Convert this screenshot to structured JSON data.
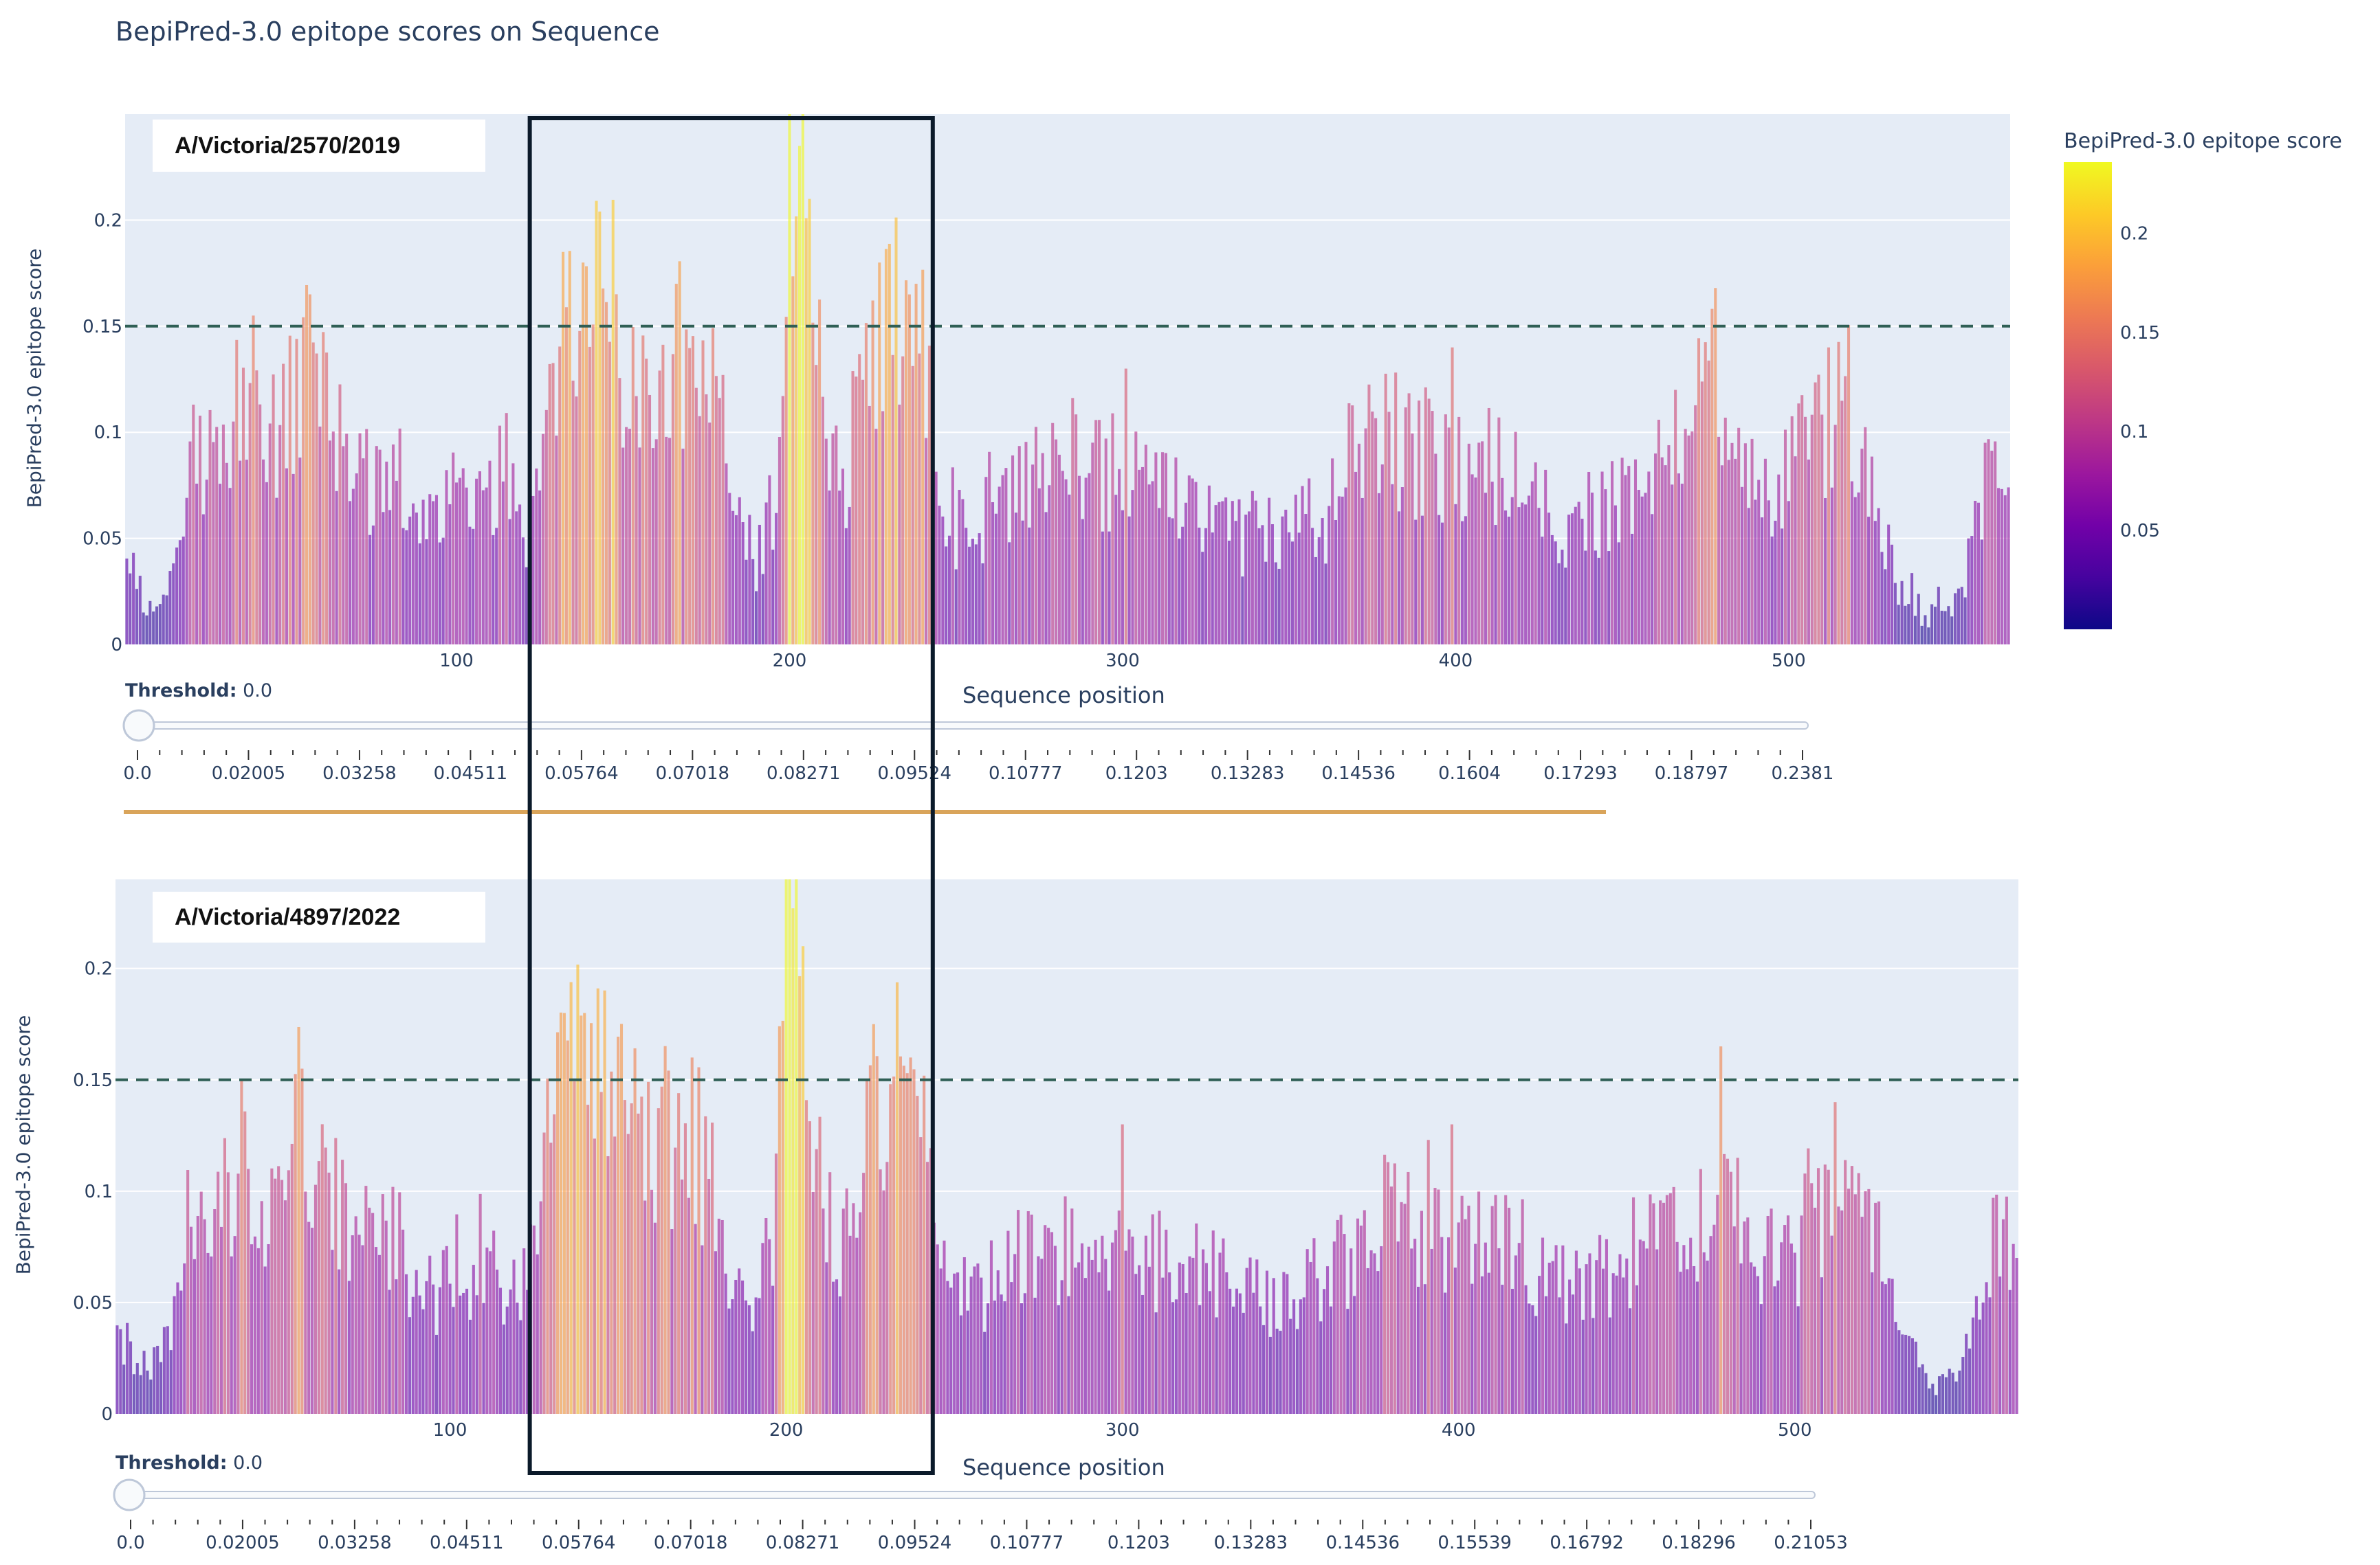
{
  "title": "BepiPred-3.0 epitope scores on Sequence",
  "colorbar": {
    "title": "BepiPred-3.0 epitope score",
    "ticks": [
      "0.05",
      "0.1",
      "0.15",
      "0.2"
    ],
    "range": [
      0.0,
      0.236
    ],
    "colors": [
      "#0d0887",
      "#46039f",
      "#7201a8",
      "#9c179e",
      "#bd3786",
      "#d8576b",
      "#ed7953",
      "#fb9f3a",
      "#fdca26",
      "#f0f921"
    ]
  },
  "colors": {
    "plot_bg": "#e5ecf6",
    "threshold_line": "#2f5f55",
    "highlight_box": "#0b1a2a",
    "divider": "#d9a45a",
    "text": "#2a3f5f"
  },
  "chart_data": [
    {
      "type": "bar",
      "panel": "top",
      "strain": "A/Victoria/2570/2019",
      "xlabel": "Sequence position",
      "ylabel": "BepiPred-3.0 epitope score",
      "xlim": [
        1,
        566
      ],
      "ylim": [
        0,
        0.25
      ],
      "x_ticks": [
        "100",
        "200",
        "300",
        "400",
        "500"
      ],
      "y_ticks": [
        "0",
        "0.05",
        "0.1",
        "0.15",
        "0.2"
      ],
      "threshold_line": 0.15,
      "highlight_region": [
        122,
        243
      ],
      "profile_anchors": [
        [
          1,
          0.04
        ],
        [
          8,
          0.02
        ],
        [
          15,
          0.03
        ],
        [
          22,
          0.09
        ],
        [
          30,
          0.1
        ],
        [
          38,
          0.13
        ],
        [
          42,
          0.09
        ],
        [
          50,
          0.11
        ],
        [
          55,
          0.14
        ],
        [
          60,
          0.12
        ],
        [
          66,
          0.09
        ],
        [
          75,
          0.08
        ],
        [
          85,
          0.07
        ],
        [
          95,
          0.06
        ],
        [
          105,
          0.07
        ],
        [
          115,
          0.08
        ],
        [
          120,
          0.05
        ],
        [
          125,
          0.07
        ],
        [
          130,
          0.12
        ],
        [
          135,
          0.16
        ],
        [
          140,
          0.16
        ],
        [
          145,
          0.17
        ],
        [
          150,
          0.13
        ],
        [
          155,
          0.13
        ],
        [
          160,
          0.12
        ],
        [
          165,
          0.13
        ],
        [
          170,
          0.14
        ],
        [
          175,
          0.13
        ],
        [
          182,
          0.08
        ],
        [
          190,
          0.04
        ],
        [
          195,
          0.07
        ],
        [
          200,
          0.2
        ],
        [
          203,
          0.22
        ],
        [
          206,
          0.18
        ],
        [
          210,
          0.12
        ],
        [
          215,
          0.07
        ],
        [
          220,
          0.11
        ],
        [
          225,
          0.14
        ],
        [
          230,
          0.15
        ],
        [
          235,
          0.15
        ],
        [
          240,
          0.14
        ],
        [
          245,
          0.06
        ],
        [
          255,
          0.06
        ],
        [
          265,
          0.08
        ],
        [
          275,
          0.08
        ],
        [
          285,
          0.09
        ],
        [
          292,
          0.08
        ],
        [
          300,
          0.09
        ],
        [
          310,
          0.08
        ],
        [
          320,
          0.07
        ],
        [
          332,
          0.06
        ],
        [
          342,
          0.05
        ],
        [
          350,
          0.05
        ],
        [
          360,
          0.06
        ],
        [
          370,
          0.09
        ],
        [
          380,
          0.1
        ],
        [
          390,
          0.09
        ],
        [
          400,
          0.08
        ],
        [
          410,
          0.09
        ],
        [
          420,
          0.07
        ],
        [
          430,
          0.06
        ],
        [
          440,
          0.06
        ],
        [
          450,
          0.07
        ],
        [
          460,
          0.08
        ],
        [
          470,
          0.1
        ],
        [
          478,
          0.12
        ],
        [
          485,
          0.08
        ],
        [
          492,
          0.07
        ],
        [
          500,
          0.09
        ],
        [
          510,
          0.11
        ],
        [
          516,
          0.12
        ],
        [
          522,
          0.09
        ],
        [
          530,
          0.04
        ],
        [
          540,
          0.015
        ],
        [
          550,
          0.02
        ],
        [
          557,
          0.06
        ],
        [
          562,
          0.09
        ],
        [
          566,
          0.06
        ]
      ],
      "peaks": [
        [
          39,
          0.155
        ],
        [
          56,
          0.165
        ],
        [
          132,
          0.185
        ],
        [
          138,
          0.18
        ],
        [
          166,
          0.17
        ],
        [
          203,
          0.235
        ],
        [
          206,
          0.21
        ],
        [
          227,
          0.18
        ],
        [
          238,
          0.17
        ],
        [
          301,
          0.13
        ],
        [
          399,
          0.14
        ],
        [
          478,
          0.168
        ],
        [
          512,
          0.14
        ]
      ],
      "slider": {
        "label": "Threshold:",
        "value": "0.0",
        "ticks": [
          "0.0",
          "0.02005",
          "0.03258",
          "0.04511",
          "0.05764",
          "0.07018",
          "0.08271",
          "0.09524",
          "0.10777",
          "0.1203",
          "0.13283",
          "0.14536",
          "0.1604",
          "0.17293",
          "0.18797",
          "0.2381"
        ]
      }
    },
    {
      "type": "bar",
      "panel": "bottom",
      "strain": "A/Victoria/4897/2022",
      "xlabel": "Sequence position",
      "ylabel": "BepiPred-3.0 epitope score",
      "xlim": [
        1,
        566
      ],
      "ylim": [
        0,
        0.24
      ],
      "x_ticks": [
        "100",
        "200",
        "300",
        "400",
        "500"
      ],
      "y_ticks": [
        "0",
        "0.05",
        "0.1",
        "0.15",
        "0.2"
      ],
      "threshold_line": 0.15,
      "highlight_region": [
        122,
        243
      ],
      "profile_anchors": [
        [
          1,
          0.04
        ],
        [
          8,
          0.02
        ],
        [
          15,
          0.03
        ],
        [
          22,
          0.08
        ],
        [
          30,
          0.09
        ],
        [
          38,
          0.12
        ],
        [
          42,
          0.09
        ],
        [
          50,
          0.1
        ],
        [
          55,
          0.13
        ],
        [
          60,
          0.11
        ],
        [
          66,
          0.09
        ],
        [
          75,
          0.08
        ],
        [
          85,
          0.07
        ],
        [
          95,
          0.06
        ],
        [
          105,
          0.07
        ],
        [
          115,
          0.07
        ],
        [
          120,
          0.05
        ],
        [
          125,
          0.07
        ],
        [
          130,
          0.12
        ],
        [
          135,
          0.15
        ],
        [
          140,
          0.16
        ],
        [
          145,
          0.16
        ],
        [
          150,
          0.13
        ],
        [
          155,
          0.13
        ],
        [
          160,
          0.12
        ],
        [
          165,
          0.13
        ],
        [
          170,
          0.13
        ],
        [
          175,
          0.12
        ],
        [
          182,
          0.07
        ],
        [
          190,
          0.04
        ],
        [
          195,
          0.07
        ],
        [
          200,
          0.19
        ],
        [
          203,
          0.21
        ],
        [
          206,
          0.17
        ],
        [
          210,
          0.11
        ],
        [
          215,
          0.07
        ],
        [
          220,
          0.1
        ],
        [
          225,
          0.13
        ],
        [
          230,
          0.14
        ],
        [
          235,
          0.14
        ],
        [
          240,
          0.13
        ],
        [
          245,
          0.06
        ],
        [
          255,
          0.06
        ],
        [
          265,
          0.07
        ],
        [
          275,
          0.07
        ],
        [
          285,
          0.08
        ],
        [
          292,
          0.08
        ],
        [
          300,
          0.08
        ],
        [
          310,
          0.07
        ],
        [
          320,
          0.07
        ],
        [
          332,
          0.06
        ],
        [
          342,
          0.05
        ],
        [
          350,
          0.05
        ],
        [
          360,
          0.06
        ],
        [
          370,
          0.08
        ],
        [
          380,
          0.09
        ],
        [
          390,
          0.09
        ],
        [
          400,
          0.08
        ],
        [
          410,
          0.08
        ],
        [
          420,
          0.07
        ],
        [
          430,
          0.06
        ],
        [
          440,
          0.06
        ],
        [
          450,
          0.07
        ],
        [
          460,
          0.08
        ],
        [
          470,
          0.09
        ],
        [
          478,
          0.11
        ],
        [
          485,
          0.08
        ],
        [
          492,
          0.07
        ],
        [
          500,
          0.08
        ],
        [
          510,
          0.1
        ],
        [
          516,
          0.11
        ],
        [
          522,
          0.09
        ],
        [
          530,
          0.04
        ],
        [
          540,
          0.015
        ],
        [
          550,
          0.02
        ],
        [
          557,
          0.06
        ],
        [
          562,
          0.09
        ],
        [
          566,
          0.06
        ]
      ],
      "peaks": [
        [
          38,
          0.15
        ],
        [
          56,
          0.155
        ],
        [
          134,
          0.18
        ],
        [
          140,
          0.18
        ],
        [
          172,
          0.16
        ],
        [
          202,
          0.227
        ],
        [
          205,
          0.21
        ],
        [
          226,
          0.175
        ],
        [
          237,
          0.16
        ],
        [
          300,
          0.13
        ],
        [
          398,
          0.13
        ],
        [
          478,
          0.165
        ],
        [
          512,
          0.14
        ]
      ],
      "slider": {
        "label": "Threshold:",
        "value": "0.0",
        "ticks": [
          "0.0",
          "0.02005",
          "0.03258",
          "0.04511",
          "0.05764",
          "0.07018",
          "0.08271",
          "0.09524",
          "0.10777",
          "0.1203",
          "0.13283",
          "0.14536",
          "0.15539",
          "0.16792",
          "0.18296",
          "0.21053"
        ]
      }
    }
  ]
}
